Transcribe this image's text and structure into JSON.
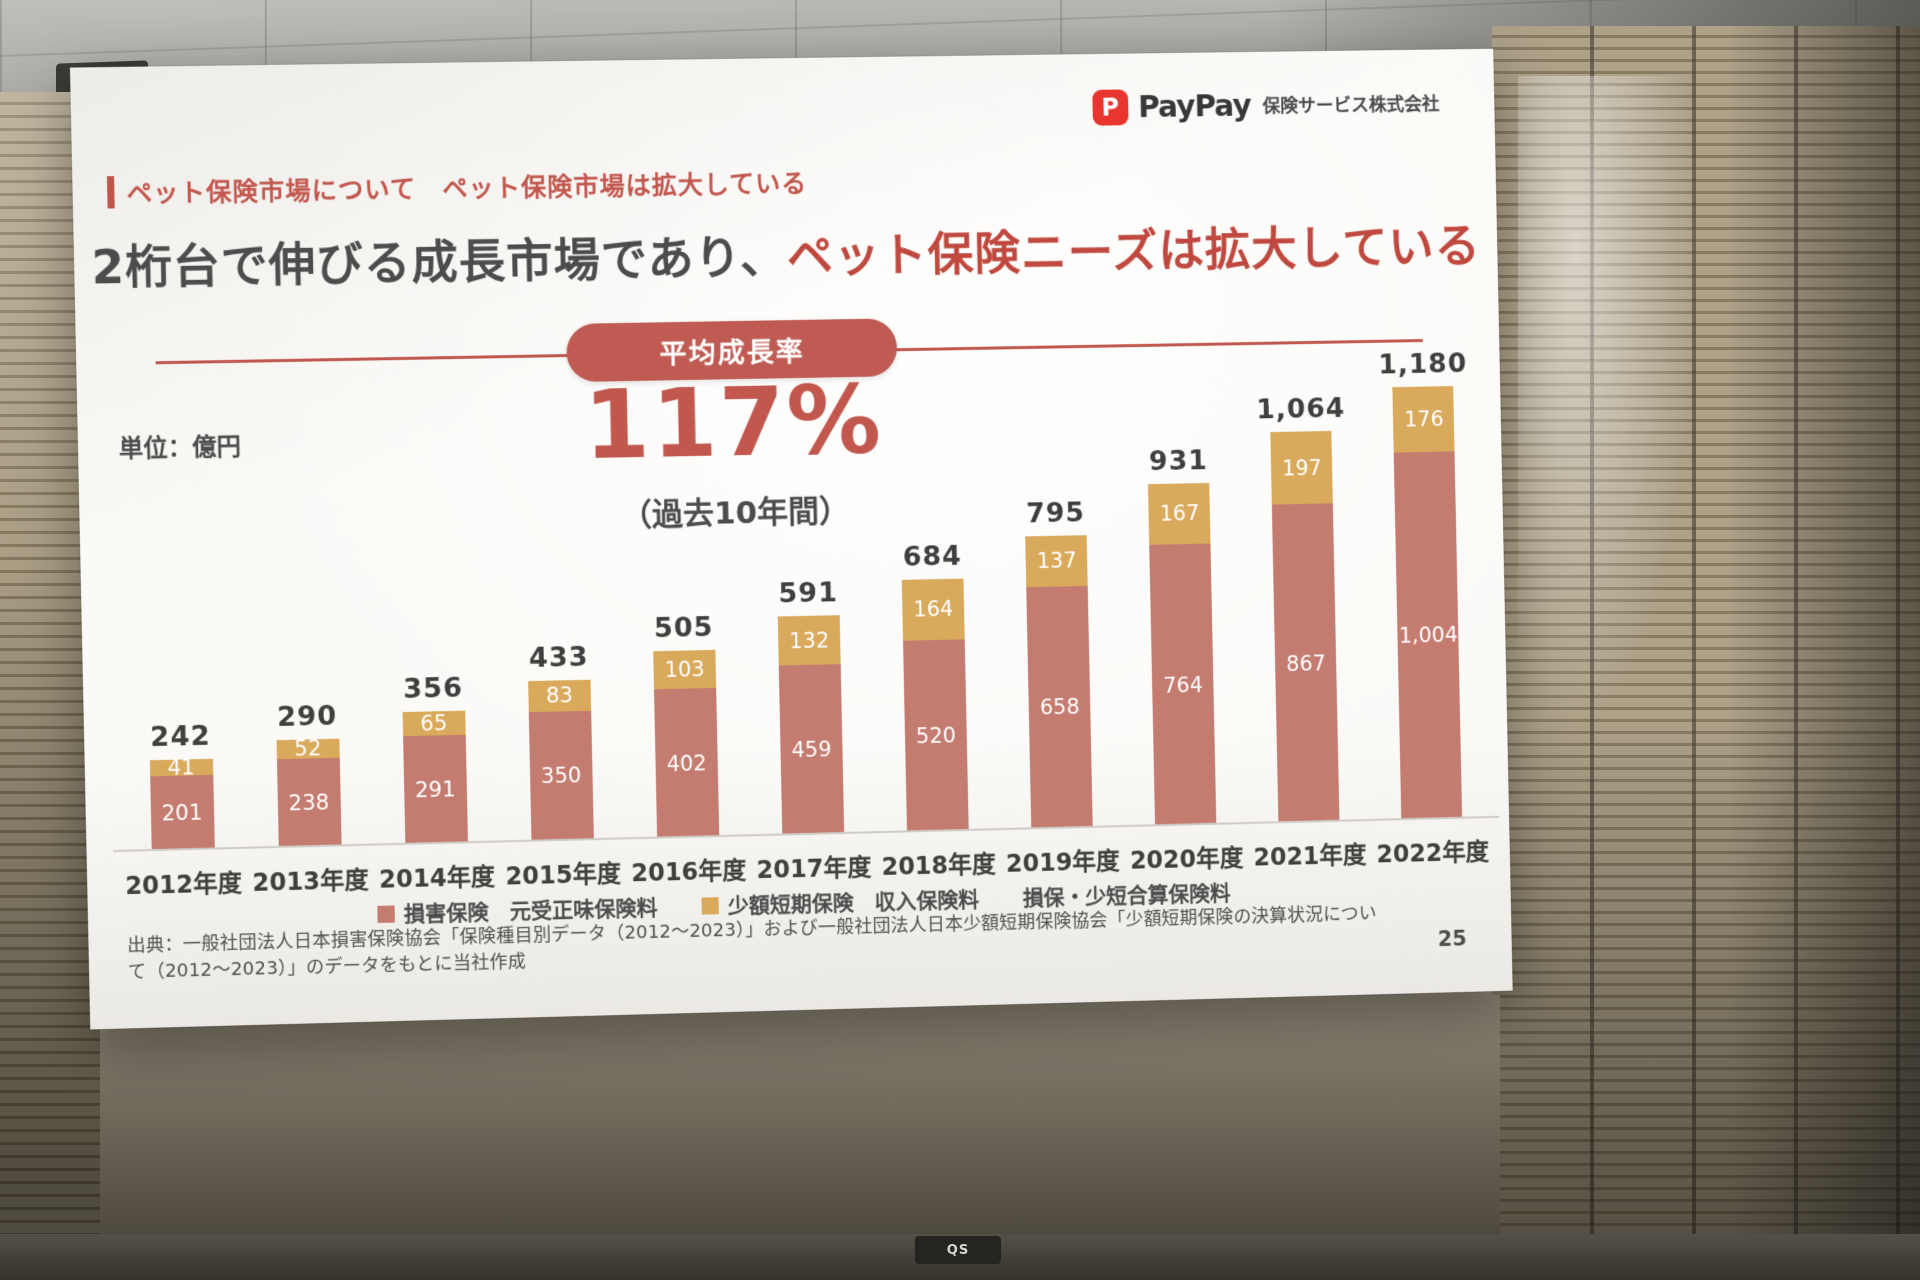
{
  "scene": {
    "bottom_label": "QS"
  },
  "logo": {
    "icon": "P",
    "brand": "PayPay",
    "suffix": "保険サービス株式会社"
  },
  "slide": {
    "kicker": "ペット保険市場について　ペット保険市場は拡大している",
    "title": {
      "plain": "2桁台で伸びる成長市場であり、",
      "accent": "ペット保険ニーズは拡大している"
    },
    "badge": "平均成長率",
    "growth": {
      "value": "117%",
      "period": "（過去10年間）"
    },
    "unit_label": "単位：億円",
    "legend": [
      {
        "swatch_color": "#c47b70",
        "label": "損害保険　元受正味保険料"
      },
      {
        "swatch_color": "#d9a95c",
        "label": "少額短期保険　収入保険料"
      },
      {
        "swatch_color": "",
        "label": "損保・少短合算保険料"
      }
    ],
    "source": "出典：一般社団法人日本損害保険協会「保険種目別データ（2012～2023）」および一般社団法人日本少額短期保険協会「少額短期保険の決算状況について（2012～2023）」のデータをもとに当社作成",
    "page_number": "25"
  },
  "chart_data": {
    "type": "bar",
    "stacked": true,
    "title": "ペット保険市場の推移",
    "unit": "億円",
    "categories": [
      "2012年度",
      "2013年度",
      "2014年度",
      "2015年度",
      "2016年度",
      "2017年度",
      "2018年度",
      "2019年度",
      "2020年度",
      "2021年度",
      "2022年度"
    ],
    "series": [
      {
        "name": "損害保険 元受正味保険料",
        "color": "#c47b70",
        "values": [
          201,
          238,
          291,
          350,
          402,
          459,
          520,
          658,
          764,
          867,
          1004
        ]
      },
      {
        "name": "少額短期保険 収入保険料",
        "color": "#d9a95c",
        "values": [
          41,
          52,
          65,
          83,
          103,
          132,
          164,
          137,
          167,
          197,
          176
        ]
      }
    ],
    "totals": [
      242,
      290,
      356,
      433,
      505,
      591,
      684,
      795,
      931,
      1064,
      1180
    ],
    "ylim": [
      0,
      1250
    ],
    "grid": false,
    "legend_position": "bottom"
  }
}
